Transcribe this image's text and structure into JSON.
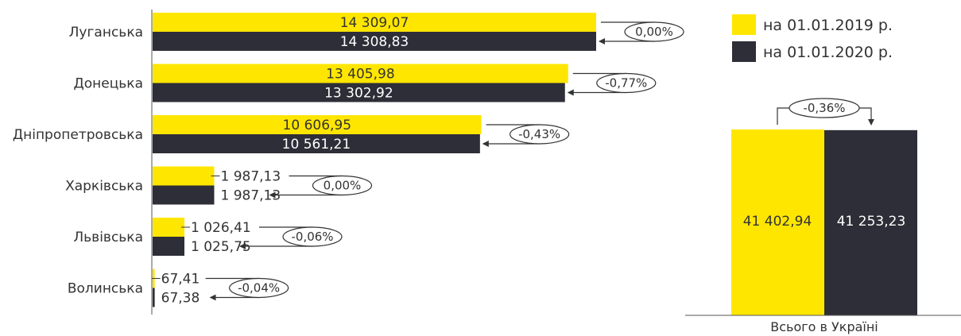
{
  "colors": {
    "yellow": "#ffe600",
    "dark": "#2e2e38",
    "text": "#333333",
    "axis": "#555555"
  },
  "legend": [
    {
      "label": "на 01.01.2019 р.",
      "color": "#ffe600"
    },
    {
      "label": "на 01.01.2020 р.",
      "color": "#2e2e38"
    }
  ],
  "chart_data": [
    {
      "type": "bar",
      "orientation": "horizontal",
      "categories": [
        "Луганська",
        "Донецька",
        "Дніпропетровська",
        "Харківська",
        "Львівська",
        "Волинська"
      ],
      "series": [
        {
          "name": "на 01.01.2019 р.",
          "values": [
            14309.07,
            13405.98,
            10606.95,
            1987.13,
            1026.41,
            67.41
          ],
          "labels": [
            "14 309,07",
            "13 405,98",
            "10 606,95",
            "1 987,13",
            "1 026,41",
            "67,41"
          ]
        },
        {
          "name": "на 01.01.2020 р.",
          "values": [
            14308.83,
            13302.92,
            10561.21,
            1987.13,
            1025.75,
            67.38
          ],
          "labels": [
            "14 308,83",
            "13 302,92",
            "10 561,21",
            "1 987,13",
            "1 025,75",
            "67,38"
          ]
        }
      ],
      "changes": [
        "0,00%",
        "-0,77%",
        "-0,43%",
        "0,00%",
        "-0,06%",
        "-0,04%"
      ]
    },
    {
      "type": "bar",
      "categories": [
        "Всього в Україні"
      ],
      "series": [
        {
          "name": "на 01.01.2019 р.",
          "values": [
            41402.94
          ],
          "labels": [
            "41 402,94"
          ]
        },
        {
          "name": "на 01.01.2020 р.",
          "values": [
            41253.23
          ],
          "labels": [
            "41 253,23"
          ]
        }
      ],
      "changes": [
        "-0,36%"
      ]
    }
  ]
}
